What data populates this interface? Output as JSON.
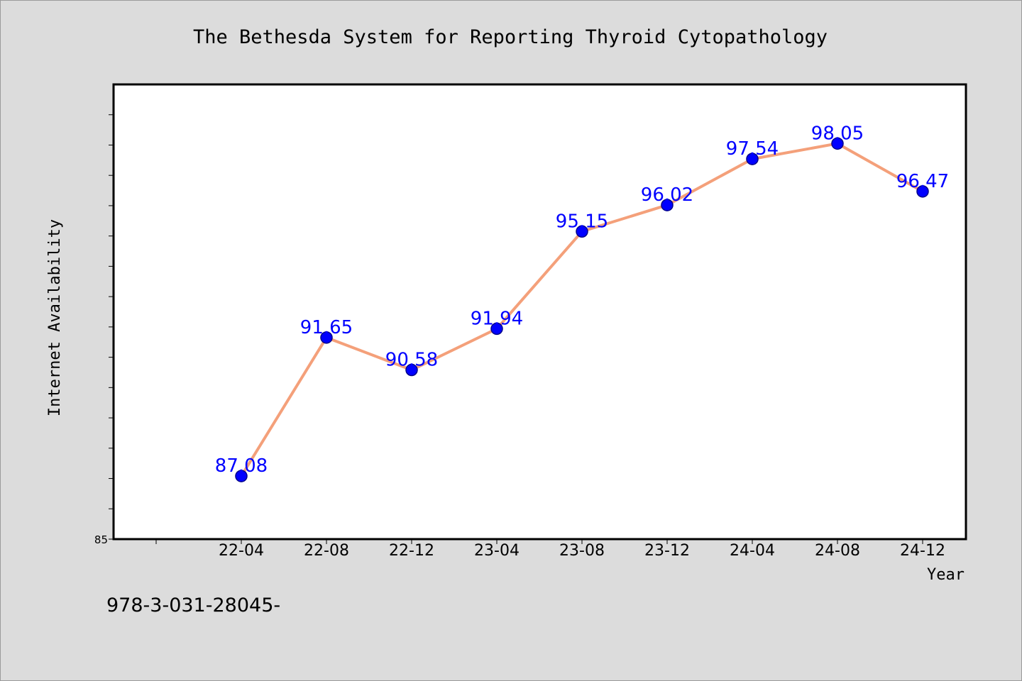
{
  "colors": {
    "background": "#dcdcdc",
    "plot_background": "#ffffff",
    "line": "#f4a07a",
    "marker": "#0000ff",
    "data_label": "#0000ff"
  },
  "footer_text": "978-3-031-28045-",
  "chart_data": {
    "type": "line",
    "title": "The Bethesda System for Reporting Thyroid Cytopathology",
    "xlabel": "Year",
    "ylabel": "Internet Availability",
    "categories": [
      "22-04",
      "22-08",
      "22-12",
      "23-04",
      "23-08",
      "23-12",
      "24-04",
      "24-08",
      "24-12"
    ],
    "series": [
      {
        "values": [
          87.08,
          91.65,
          90.58,
          91.94,
          95.15,
          96.02,
          97.54,
          98.05,
          96.47
        ]
      }
    ],
    "data_labels": [
      "87.08",
      "91.65",
      "90.58",
      "91.94",
      "95.15",
      "96.02",
      "97.54",
      "98.05",
      "96.47"
    ],
    "ylim": [
      85,
      100
    ],
    "ytick_labels": [
      {
        "value": 85,
        "label": "85"
      }
    ],
    "y_minor_tick_step": 1,
    "legend": "none",
    "grid": false
  }
}
